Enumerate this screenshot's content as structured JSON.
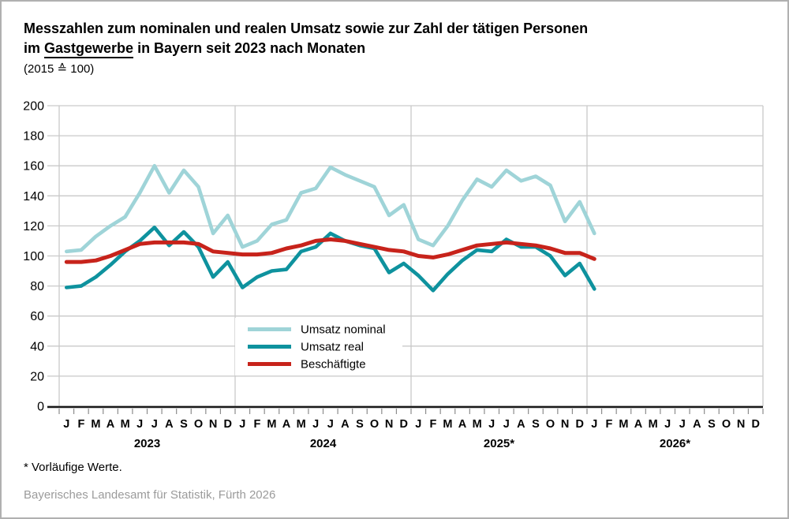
{
  "page": {
    "title": {
      "line1": "Messzahlen zum nominalen und realen Umsatz sowie zur Zahl der tätigen Personen",
      "line2_prefix": "im ",
      "line2_underlined": "Gastgewerbe",
      "line2_suffix": " in Bayern seit 2023 nach Monaten",
      "line3": "(2015 ≙ 100)"
    },
    "footnote": "* Vorläufige Werte.",
    "source": "Bayerisches Landesamt für Statistik, Fürth 2026"
  },
  "chart_data": {
    "type": "line",
    "title": "Messzahlen zum nominalen und realen Umsatz sowie zur Zahl der tätigen Personen im Gastgewerbe in Bayern seit 2023 nach Monaten (2015 ≙ 100)",
    "ylim": [
      0,
      200
    ],
    "ytick_step": 20,
    "grid": true,
    "legend_position": "inside-center-left",
    "month_letters": [
      "J",
      "F",
      "M",
      "A",
      "M",
      "J",
      "J",
      "A",
      "S",
      "O",
      "N",
      "D"
    ],
    "years": [
      {
        "label": "2023",
        "n_months": 12
      },
      {
        "label": "2024",
        "n_months": 12
      },
      {
        "label": "2025*",
        "n_months": 12
      },
      {
        "label": "2026*",
        "n_months": 12
      }
    ],
    "x_slots_total": 48,
    "colors": {
      "gridline": "#c9c9c9",
      "axis": "#1a1a1a",
      "tick": "#8c8c8c",
      "text": "#000000",
      "legend_bg": "#ffffff"
    },
    "series": [
      {
        "name": "Umsatz nominal",
        "color": "#9fd4d8",
        "stroke_width": 4.6,
        "values": [
          103,
          104,
          113,
          120,
          126,
          142,
          160,
          142,
          157,
          146,
          115,
          127,
          106,
          110,
          121,
          124,
          142,
          145,
          159,
          154,
          150,
          146,
          127,
          134,
          111,
          107,
          120,
          137,
          151,
          146,
          157,
          150,
          153,
          147,
          123,
          136,
          115
        ]
      },
      {
        "name": "Umsatz real",
        "color": "#0e929e",
        "stroke_width": 4.6,
        "values": [
          79,
          80,
          86,
          94,
          103,
          110,
          119,
          107,
          116,
          106,
          86,
          96,
          79,
          86,
          90,
          91,
          103,
          106,
          115,
          110,
          107,
          105,
          89,
          95,
          87,
          77,
          88,
          97,
          104,
          103,
          111,
          106,
          106,
          100,
          87,
          95,
          78
        ]
      },
      {
        "name": "Beschäftigte",
        "color": "#c7231b",
        "stroke_width": 5,
        "values": [
          96,
          96,
          97,
          100,
          104,
          108,
          109,
          109,
          109,
          108,
          103,
          102,
          101,
          101,
          102,
          105,
          107,
          110,
          111,
          110,
          108,
          106,
          104,
          103,
          100,
          99,
          101,
          104,
          107,
          108,
          109,
          108,
          107,
          105,
          102,
          102,
          98
        ]
      }
    ]
  }
}
